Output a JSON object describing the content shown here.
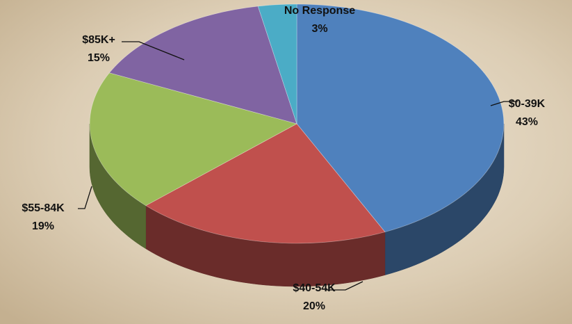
{
  "chart_data": {
    "type": "pie3d",
    "categories": [
      "$0-39K",
      "$40-54K",
      "$55-84K",
      "$85K+",
      "No Response"
    ],
    "values": [
      43,
      20,
      19,
      15,
      3
    ],
    "value_labels": [
      "43%",
      "20%",
      "19%",
      "15%",
      "3%"
    ],
    "colors": [
      "#4f81bd",
      "#c0504d",
      "#9bbb59",
      "#8064a2",
      "#4bacc6"
    ]
  }
}
